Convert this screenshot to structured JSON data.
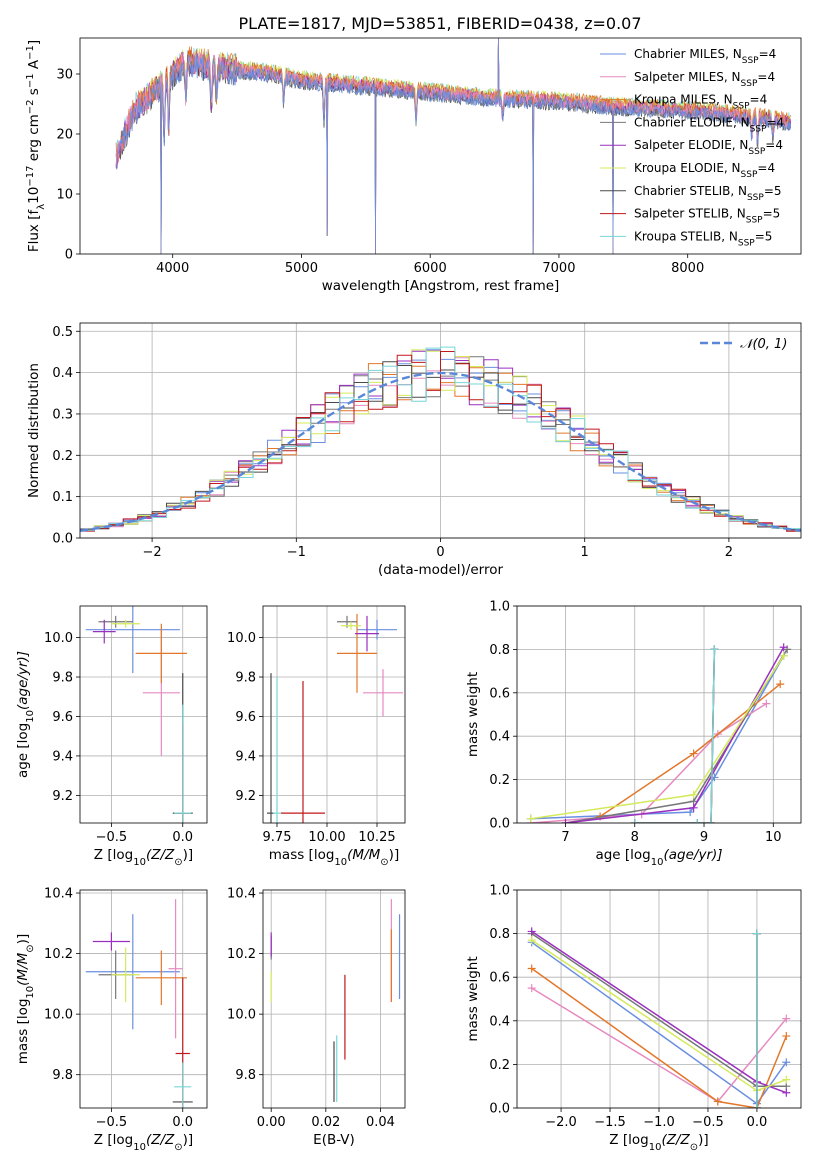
{
  "figure": {
    "title": "PLATE=1817, MJD=53851, FIBERID=0438, z=0.07"
  },
  "colors": {
    "series": [
      "#6a8fe0",
      "#e68ac0",
      "#e2772a",
      "#777777",
      "#9b30c0",
      "#d4ea5a",
      "#4a4a4a",
      "#c0181c",
      "#78d6d8"
    ]
  },
  "series_labels": [
    {
      "main": "Chabrier MILES, N",
      "sub": "SSP",
      "tail": "=4"
    },
    {
      "main": "Salpeter MILES, N",
      "sub": "SSP",
      "tail": "=4"
    },
    {
      "main": "Kroupa MILES, N",
      "sub": "SSP",
      "tail": "=4"
    },
    {
      "main": "Chabrier ELODIE, N",
      "sub": "SSP",
      "tail": "=4"
    },
    {
      "main": "Salpeter ELODIE, N",
      "sub": "SSP",
      "tail": "=4"
    },
    {
      "main": "Kroupa ELODIE, N",
      "sub": "SSP",
      "tail": "=4"
    },
    {
      "main": "Chabrier STELIB, N",
      "sub": "SSP",
      "tail": "=5"
    },
    {
      "main": "Salpeter STELIB, N",
      "sub": "SSP",
      "tail": "=5"
    },
    {
      "main": "Kroupa STELIB, N",
      "sub": "SSP",
      "tail": "=5"
    }
  ],
  "chart_data": [
    {
      "id": "spectrum",
      "type": "line",
      "xlabel": "wavelength [Angstrom, rest frame]",
      "ylabel": "Flux [f_λ10^-17 erg cm^-2 s^-1 A^-1]",
      "xlim": [
        3280,
        8880
      ],
      "ylim": [
        0,
        36
      ],
      "xticks": [
        4000,
        5000,
        6000,
        7000,
        8000
      ],
      "yticks": [
        0,
        10,
        20,
        30
      ],
      "grid": false,
      "legend": "right, one entry per series",
      "continuum": [
        [
          3560,
          16
        ],
        [
          3700,
          24
        ],
        [
          3900,
          28
        ],
        [
          4000,
          30
        ],
        [
          4100,
          32
        ],
        [
          4400,
          31
        ],
        [
          4800,
          30
        ],
        [
          5000,
          29
        ],
        [
          5500,
          28
        ],
        [
          6000,
          27
        ],
        [
          6500,
          26
        ],
        [
          7000,
          25.5
        ],
        [
          7500,
          24.5
        ],
        [
          8000,
          24
        ],
        [
          8500,
          23
        ],
        [
          8800,
          22
        ]
      ],
      "absorption_lines": [
        {
          "x": 3934,
          "depth": 9
        },
        {
          "x": 3969,
          "depth": 8
        },
        {
          "x": 4102,
          "depth": 6
        },
        {
          "x": 4300,
          "depth": 7
        },
        {
          "x": 4340,
          "depth": 5
        },
        {
          "x": 4861,
          "depth": 4
        },
        {
          "x": 5175,
          "depth": 6
        },
        {
          "x": 5890,
          "depth": 5
        },
        {
          "x": 6563,
          "depth": 3
        },
        {
          "x": 8498,
          "depth": 3
        },
        {
          "x": 8542,
          "depth": 4
        },
        {
          "x": 8662,
          "depth": 3
        }
      ],
      "spikes": [
        {
          "x": 3910,
          "y": 0
        },
        {
          "x": 5200,
          "y": 3
        },
        {
          "x": 5577,
          "y": 0
        },
        {
          "x": 6530,
          "y": 36
        },
        {
          "x": 6800,
          "y": 0
        },
        {
          "x": 7420,
          "y": 0
        }
      ]
    },
    {
      "id": "residual-histogram",
      "type": "bar",
      "xlabel": "(data-model)/error",
      "ylabel": "Normed distribution",
      "xlim": [
        -2.5,
        2.5
      ],
      "ylim": [
        0,
        0.52
      ],
      "xticks": [
        -2,
        -1,
        0,
        1,
        2
      ],
      "yticks": [
        0.0,
        0.1,
        0.2,
        0.3,
        0.4,
        0.5
      ],
      "grid": true,
      "reference_curve": {
        "name": "𝒩(0, 1)",
        "mean": 0,
        "sigma": 1
      },
      "legend": "top-right",
      "bin_width": 0.1
    },
    {
      "id": "age-vs-Z",
      "type": "scatter",
      "xlabel": "Z [log10(Z/Z⊙)]",
      "ylabel": "age [log10(age/yr)]",
      "xlim": [
        -0.72,
        0.17
      ],
      "ylim": [
        9.06,
        10.16
      ],
      "xticks": [
        -0.5,
        0.0
      ],
      "yticks": [
        9.2,
        9.4,
        9.6,
        9.8,
        10.0
      ],
      "grid": true,
      "points": [
        {
          "x": -0.35,
          "y": 10.04,
          "xerr": 0.33,
          "yerr": 0.22
        },
        {
          "x": -0.15,
          "y": 9.72,
          "xerr": 0.13,
          "yerr": 0.32
        },
        {
          "x": -0.15,
          "y": 9.92,
          "xerr": 0.18,
          "yerr": 0.15
        },
        {
          "x": -0.47,
          "y": 10.08,
          "xerr": 0.12,
          "yerr": 0.03
        },
        {
          "x": -0.55,
          "y": 10.03,
          "xerr": 0.08,
          "yerr": 0.06
        },
        {
          "x": -0.4,
          "y": 10.07,
          "xerr": 0.1,
          "yerr": 0.02
        },
        {
          "x": 0.0,
          "y": 9.11,
          "xerr": 0.07,
          "yerr": 0.71
        },
        {
          "x": 0.0,
          "y": 9.11,
          "xerr": 0.05,
          "yerr": 0.45
        },
        {
          "x": 0.0,
          "y": 9.11,
          "xerr": 0.06,
          "yerr": 0.55
        }
      ]
    },
    {
      "id": "age-vs-mass",
      "type": "scatter",
      "xlabel": "mass [log10(M/M⊙)]",
      "ylabel": "",
      "xlim": [
        9.68,
        10.39
      ],
      "ylim": [
        9.06,
        10.16
      ],
      "xticks": [
        9.75,
        10.0,
        10.25
      ],
      "yticks": [
        9.2,
        9.4,
        9.6,
        9.8,
        10.0
      ],
      "grid": true,
      "points": [
        {
          "x": 10.25,
          "y": 10.04,
          "xerr": 0.1,
          "yerr": 0.05
        },
        {
          "x": 10.28,
          "y": 9.72,
          "xerr": 0.1,
          "yerr": 0.12
        },
        {
          "x": 10.15,
          "y": 9.92,
          "xerr": 0.1,
          "yerr": 0.2
        },
        {
          "x": 10.1,
          "y": 10.08,
          "xerr": 0.05,
          "yerr": 0.03
        },
        {
          "x": 10.2,
          "y": 10.02,
          "xerr": 0.06,
          "yerr": 0.09
        },
        {
          "x": 10.12,
          "y": 10.06,
          "xerr": 0.05,
          "yerr": 0.02
        },
        {
          "x": 9.72,
          "y": 9.11,
          "xerr": 0.02,
          "yerr": 0.71
        },
        {
          "x": 9.88,
          "y": 9.11,
          "xerr": 0.11,
          "yerr": 0.67
        },
        {
          "x": 9.75,
          "y": 9.11,
          "xerr": 0.02,
          "yerr": 0.69
        }
      ]
    },
    {
      "id": "weight-vs-age",
      "type": "line",
      "xlabel": "age [log10(age/yr)]",
      "ylabel": "mass weight",
      "xlim": [
        6.3,
        10.4
      ],
      "ylim": [
        0.0,
        1.0
      ],
      "xticks": [
        7,
        8,
        9,
        10
      ],
      "yticks": [
        0.0,
        0.2,
        0.4,
        0.6,
        0.8,
        1.0
      ],
      "grid": true,
      "series": [
        {
          "x": [
            6.5,
            8.8,
            9.15,
            10.15
          ],
          "values": [
            0.02,
            0.05,
            0.21,
            0.77
          ]
        },
        {
          "x": [
            6.5,
            8.1,
            9.2,
            9.9
          ],
          "values": [
            0.0,
            0.04,
            0.41,
            0.55
          ]
        },
        {
          "x": [
            7.5,
            8.85,
            10.1
          ],
          "values": [
            0.03,
            0.32,
            0.64
          ]
        },
        {
          "x": [
            7.0,
            8.85,
            10.2
          ],
          "values": [
            0.0,
            0.1,
            0.8
          ]
        },
        {
          "x": [
            7.0,
            8.85,
            10.15
          ],
          "values": [
            0.0,
            0.07,
            0.81
          ]
        },
        {
          "x": [
            6.5,
            8.85,
            10.15
          ],
          "values": [
            0.02,
            0.13,
            0.77
          ]
        },
        {
          "x": [
            8.0,
            8.9,
            9.1,
            9.15
          ],
          "values": [
            0.0,
            0.0,
            0.0,
            0.8
          ]
        },
        {
          "x": [
            8.0,
            8.9,
            9.1,
            9.15
          ],
          "values": [
            0.0,
            0.0,
            0.0,
            0.8
          ]
        },
        {
          "x": [
            8.0,
            8.9,
            9.1,
            9.15
          ],
          "values": [
            0.0,
            0.0,
            0.0,
            0.8
          ]
        }
      ]
    },
    {
      "id": "mass-vs-Z",
      "type": "scatter",
      "xlabel": "Z [log10(Z/Z⊙)]",
      "ylabel": "mass [log10(M/M⊙)]",
      "xlim": [
        -0.72,
        0.17
      ],
      "ylim": [
        9.69,
        10.41
      ],
      "xticks": [
        -0.5,
        0.0
      ],
      "yticks": [
        9.8,
        10.0,
        10.2,
        10.4
      ],
      "grid": true,
      "points": [
        {
          "x": -0.35,
          "y": 10.14,
          "xerr": 0.33,
          "yerr": 0.19
        },
        {
          "x": -0.05,
          "y": 10.15,
          "xerr": 0.05,
          "yerr": 0.23
        },
        {
          "x": -0.15,
          "y": 10.12,
          "xerr": 0.18,
          "yerr": 0.09
        },
        {
          "x": -0.47,
          "y": 10.13,
          "xerr": 0.12,
          "yerr": 0.08
        },
        {
          "x": -0.5,
          "y": 10.24,
          "xerr": 0.13,
          "yerr": 0.03
        },
        {
          "x": -0.4,
          "y": 10.13,
          "xerr": 0.1,
          "yerr": 0.09
        },
        {
          "x": 0.0,
          "y": 9.71,
          "xerr": 0.07,
          "yerr": 0.0
        },
        {
          "x": 0.0,
          "y": 9.87,
          "xerr": 0.05,
          "yerr": 0.25
        },
        {
          "x": 0.0,
          "y": 9.76,
          "xerr": 0.06,
          "yerr": 0.08
        }
      ]
    },
    {
      "id": "mass-vs-ebv",
      "type": "scatter",
      "xlabel": "E(B-V)",
      "ylabel": "",
      "xlim": [
        -0.003,
        0.049
      ],
      "ylim": [
        9.69,
        10.41
      ],
      "xticks": [
        0.0,
        0.02,
        0.04
      ],
      "yticks": [
        9.8,
        10.0,
        10.2,
        10.4
      ],
      "grid": true,
      "points": [
        {
          "x": 0.047,
          "y": 10.19,
          "yerr": 0.14
        },
        {
          "x": 0.044,
          "y": 10.21,
          "yerr": 0.17
        },
        {
          "x": 0.044,
          "y": 10.16,
          "yerr": 0.12
        },
        {
          "x": 0.0,
          "y": 10.22,
          "yerr": 0.04
        },
        {
          "x": 0.0,
          "y": 10.23,
          "yerr": 0.04
        },
        {
          "x": 0.0,
          "y": 10.09,
          "yerr": 0.05
        },
        {
          "x": 0.023,
          "y": 9.81,
          "yerr": 0.1
        },
        {
          "x": 0.027,
          "y": 9.99,
          "yerr": 0.14
        },
        {
          "x": 0.024,
          "y": 9.82,
          "yerr": 0.11
        }
      ]
    },
    {
      "id": "weight-vs-Z",
      "type": "line",
      "xlabel": "Z [log10(Z/Z⊙)]",
      "ylabel": "mass weight",
      "xlim": [
        -2.45,
        0.45
      ],
      "ylim": [
        0.0,
        1.0
      ],
      "xticks": [
        -2.0,
        -1.5,
        -1.0,
        -0.5,
        0.0
      ],
      "yticks": [
        0.0,
        0.2,
        0.4,
        0.6,
        0.8,
        1.0
      ],
      "grid": true,
      "series": [
        {
          "x": [
            -2.3,
            0.0,
            0.3
          ],
          "values": [
            0.76,
            0.02,
            0.21
          ]
        },
        {
          "x": [
            -2.3,
            -0.4,
            0.3
          ],
          "values": [
            0.55,
            0.03,
            0.41
          ]
        },
        {
          "x": [
            -2.3,
            -0.4,
            0.0,
            0.3
          ],
          "values": [
            0.64,
            0.03,
            0.0,
            0.33
          ]
        },
        {
          "x": [
            -2.3,
            0.0,
            0.3
          ],
          "values": [
            0.8,
            0.1,
            0.1
          ]
        },
        {
          "x": [
            -2.3,
            0.0,
            0.3
          ],
          "values": [
            0.81,
            0.12,
            0.07
          ]
        },
        {
          "x": [
            -2.3,
            0.0,
            0.3
          ],
          "values": [
            0.77,
            0.08,
            0.13
          ]
        },
        {
          "x": [
            0.0,
            0.0
          ],
          "values": [
            0.0,
            0.8
          ]
        },
        {
          "x": [
            0.0,
            0.0
          ],
          "values": [
            0.0,
            0.8
          ]
        },
        {
          "x": [
            0.0,
            0.0
          ],
          "values": [
            0.0,
            0.8
          ]
        }
      ]
    }
  ]
}
